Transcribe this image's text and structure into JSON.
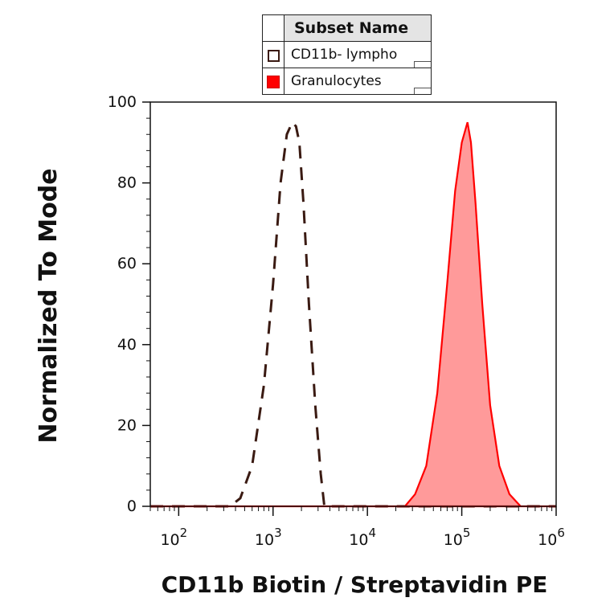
{
  "legend": {
    "header": "Subset Name",
    "items": [
      {
        "label": "CD11b- lympho",
        "style": "outline",
        "color": "#3a1a12"
      },
      {
        "label": "Granulocytes",
        "style": "filled",
        "color": "#ff0000"
      }
    ]
  },
  "chart_data": {
    "type": "area",
    "title": "",
    "xlabel": "CD11b Biotin / Streptavidin PE",
    "ylabel": "Normalized To Mode",
    "x_scale": "log",
    "xlim": [
      50,
      1000000
    ],
    "ylim": [
      0,
      100
    ],
    "x_ticks": [
      {
        "base": "10",
        "exp": "2",
        "value": 100
      },
      {
        "base": "10",
        "exp": "3",
        "value": 1000
      },
      {
        "base": "10",
        "exp": "4",
        "value": 10000
      },
      {
        "base": "10",
        "exp": "5",
        "value": 100000
      },
      {
        "base": "10",
        "exp": "6",
        "value": 1000000
      }
    ],
    "y_ticks": [
      "0",
      "20",
      "40",
      "60",
      "80",
      "100"
    ],
    "grid": false,
    "legend_position": "top",
    "series": [
      {
        "name": "CD11b- lympho",
        "style": "dashed-outline",
        "color": "#3a1a12",
        "x": [
          50,
          350,
          450,
          600,
          800,
          1000,
          1200,
          1400,
          1600,
          1750,
          1900,
          2100,
          2400,
          2800,
          3200,
          3500,
          1000000
        ],
        "y": [
          0,
          0,
          2,
          10,
          30,
          55,
          80,
          92,
          95,
          94,
          90,
          75,
          50,
          25,
          8,
          0,
          0
        ]
      },
      {
        "name": "Granulocytes",
        "style": "filled",
        "color": "#ff0000",
        "fill": "#ff9a9a",
        "x": [
          50,
          25000,
          32000,
          42000,
          55000,
          70000,
          85000,
          100000,
          115000,
          125000,
          140000,
          165000,
          200000,
          250000,
          320000,
          420000,
          500000,
          1000000
        ],
        "y": [
          0,
          0,
          3,
          10,
          28,
          55,
          78,
          90,
          95,
          90,
          75,
          50,
          25,
          10,
          3,
          0,
          0,
          0
        ]
      }
    ]
  }
}
